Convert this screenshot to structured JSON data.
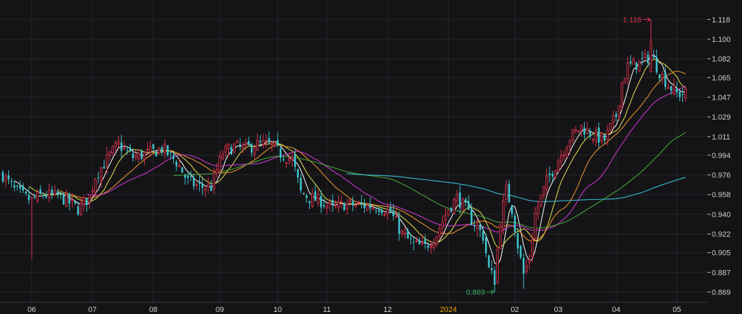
{
  "colors": {
    "background": "#141417",
    "grid": "#26272b",
    "axis_text": "#cfcfd2",
    "highlight_tick": "#f0a500",
    "up": "#e0314b",
    "down": "#3fc6d0",
    "ma5": "#ffffff",
    "ma10": "#e8e04a",
    "ma20": "#f59a2c",
    "ma30": "#d838d8",
    "ma60": "#4cae3c",
    "ma120": "#3cc8e0",
    "high_label": "#e0314b",
    "low_label": "#3cb060"
  },
  "chart_data": {
    "type": "candlestick",
    "y_ticks": [
      "1.118",
      "1.100",
      "1.082",
      "1.065",
      "1.047",
      "1.029",
      "1.011",
      "0.994",
      "0.976",
      "0.958",
      "0.940",
      "0.922",
      "0.905",
      "0.887",
      "0.869"
    ],
    "ylim": [
      0.8615,
      1.1295
    ],
    "x_ticks": [
      {
        "label": "06",
        "index": 10
      },
      {
        "label": "07",
        "index": 31
      },
      {
        "label": "08",
        "index": 52
      },
      {
        "label": "09",
        "index": 75
      },
      {
        "label": "10",
        "index": 95
      },
      {
        "label": "11",
        "index": 112
      },
      {
        "label": "12",
        "index": 133
      },
      {
        "label": "2024",
        "index": 154,
        "highlight": true
      },
      {
        "label": "02",
        "index": 177
      },
      {
        "label": "03",
        "index": 192
      },
      {
        "label": "04",
        "index": 212
      },
      {
        "label": "05",
        "index": 233
      }
    ],
    "max_label": {
      "text": "1.118",
      "index": 224,
      "value": 1.118
    },
    "min_label": {
      "text": "0.869",
      "index": 170,
      "value": 0.869
    },
    "anchors": [
      [
        0,
        0.976
      ],
      [
        4,
        0.962
      ],
      [
        8,
        0.955
      ],
      [
        10,
        0.953
      ],
      [
        14,
        0.958
      ],
      [
        20,
        0.956
      ],
      [
        26,
        0.945
      ],
      [
        30,
        0.956
      ],
      [
        32,
        0.975
      ],
      [
        36,
        0.99
      ],
      [
        40,
        1.004
      ],
      [
        45,
        0.992
      ],
      [
        52,
        0.997
      ],
      [
        55,
        1.0
      ],
      [
        60,
        0.988
      ],
      [
        64,
        0.97
      ],
      [
        68,
        0.965
      ],
      [
        72,
        0.965
      ],
      [
        76,
        0.996
      ],
      [
        80,
        1.002
      ],
      [
        84,
        1.0
      ],
      [
        88,
        1.004
      ],
      [
        93,
        1.003
      ],
      [
        96,
        0.995
      ],
      [
        100,
        0.99
      ],
      [
        103,
        0.96
      ],
      [
        106,
        0.955
      ],
      [
        110,
        0.952
      ],
      [
        114,
        0.945
      ],
      [
        118,
        0.949
      ],
      [
        124,
        0.948
      ],
      [
        130,
        0.947
      ],
      [
        134,
        0.942
      ],
      [
        138,
        0.922
      ],
      [
        142,
        0.912
      ],
      [
        146,
        0.91
      ],
      [
        150,
        0.922
      ],
      [
        154,
        0.945
      ],
      [
        157,
        0.955
      ],
      [
        160,
        0.945
      ],
      [
        162,
        0.935
      ],
      [
        164,
        0.928
      ],
      [
        166,
        0.92
      ],
      [
        168,
        0.89
      ],
      [
        170,
        0.88
      ],
      [
        172,
        0.935
      ],
      [
        174,
        0.962
      ],
      [
        176,
        0.945
      ],
      [
        178,
        0.912
      ],
      [
        180,
        0.885
      ],
      [
        182,
        0.9
      ],
      [
        184,
        0.94
      ],
      [
        186,
        0.955
      ],
      [
        188,
        0.97
      ],
      [
        192,
        0.99
      ],
      [
        196,
        1.01
      ],
      [
        200,
        1.02
      ],
      [
        204,
        1.012
      ],
      [
        208,
        1.008
      ],
      [
        212,
        1.03
      ],
      [
        214,
        1.06
      ],
      [
        216,
        1.075
      ],
      [
        220,
        1.078
      ],
      [
        224,
        1.085
      ],
      [
        227,
        1.07
      ],
      [
        230,
        1.058
      ],
      [
        233,
        1.05
      ]
    ],
    "moving_averages": [
      {
        "period": 5,
        "color_key": "ma5"
      },
      {
        "period": 10,
        "color_key": "ma10"
      },
      {
        "period": 20,
        "color_key": "ma20"
      },
      {
        "period": 30,
        "color_key": "ma30"
      },
      {
        "period": 60,
        "color_key": "ma60"
      },
      {
        "period": 120,
        "color_key": "ma120"
      }
    ],
    "candle_count": 237
  }
}
